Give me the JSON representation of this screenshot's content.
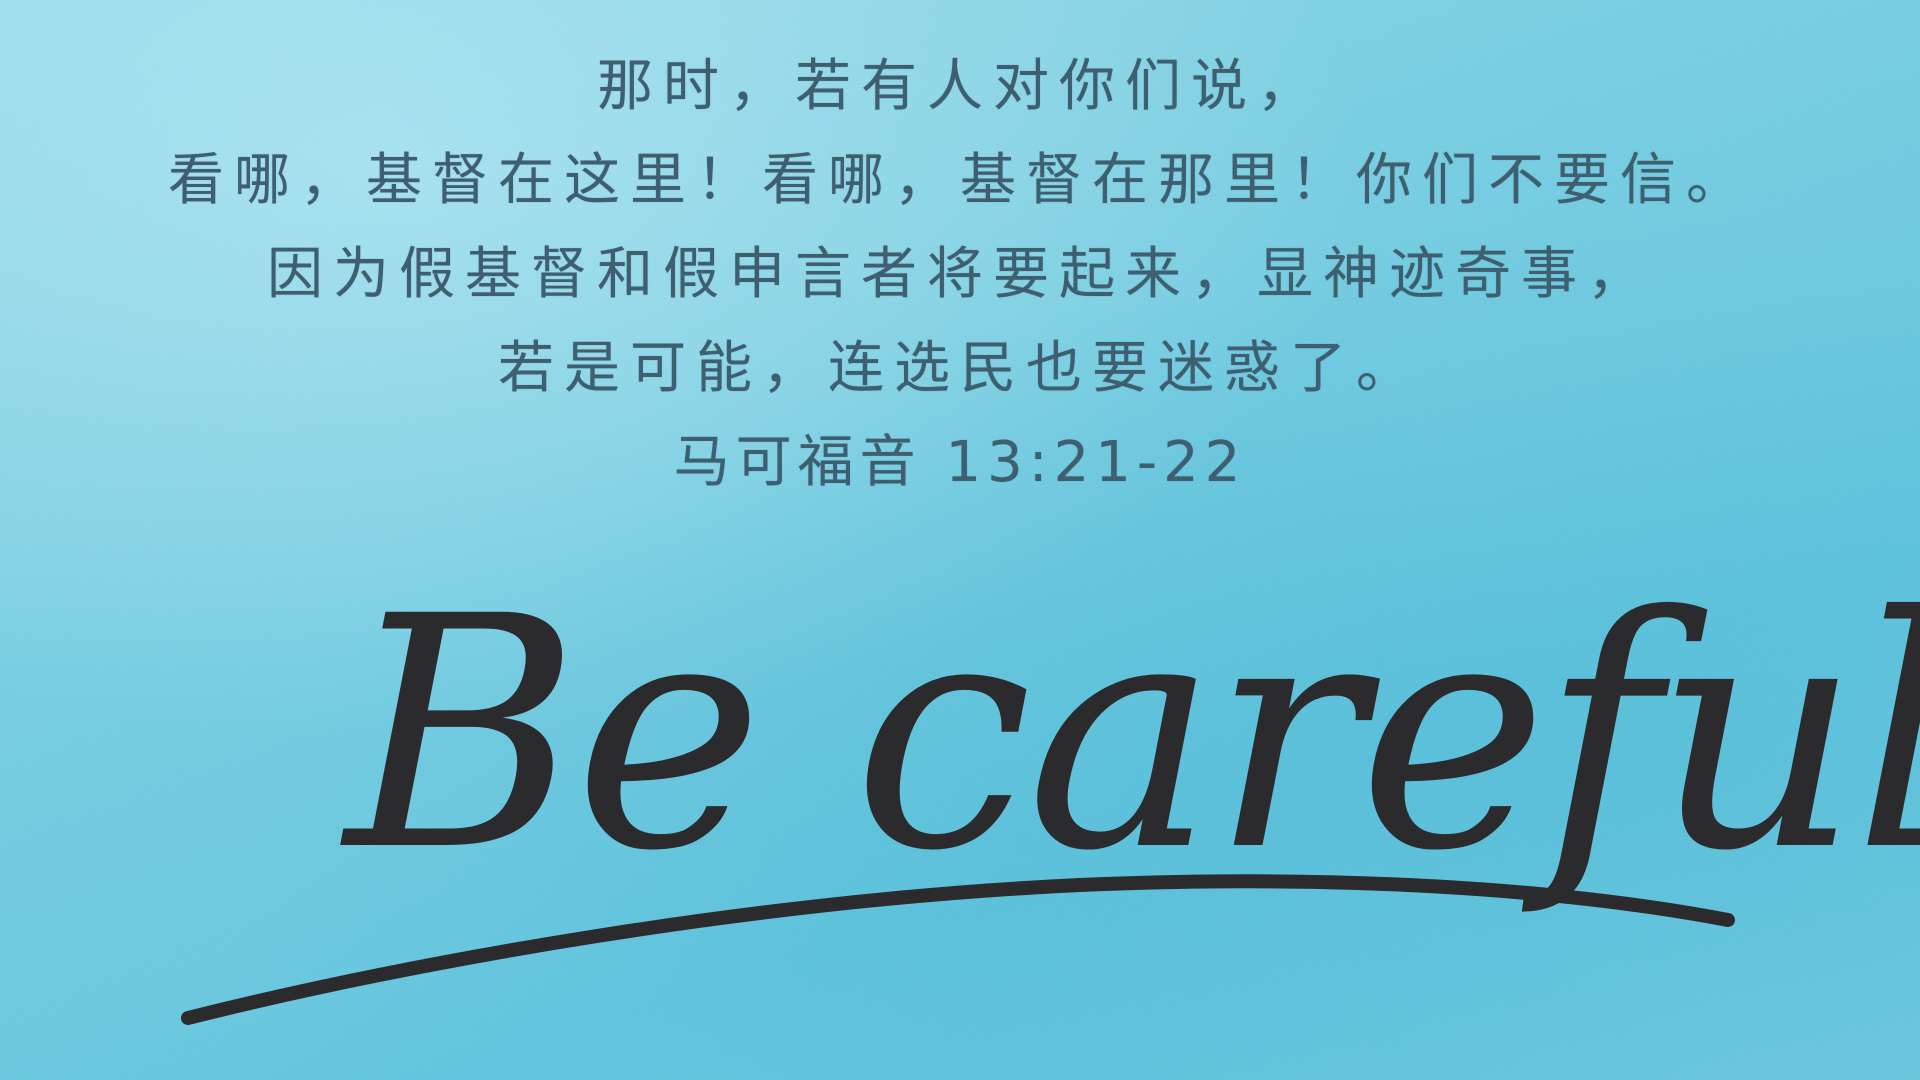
{
  "verse": {
    "lines": [
      "那时，若有人对你们说，",
      "看哪，基督在这里！看哪，基督在那里！你们不要信。",
      "因为假基督和假申言者将要起来，显神迹奇事，",
      "若是可能，连选民也要迷惑了。"
    ],
    "reference": "马可福音 13:21-22"
  },
  "headline": {
    "text": "Be careful !"
  },
  "colors": {
    "background": "#74cbe0",
    "verse_text": "#3e5f70",
    "ink": "#2b2a2c"
  }
}
